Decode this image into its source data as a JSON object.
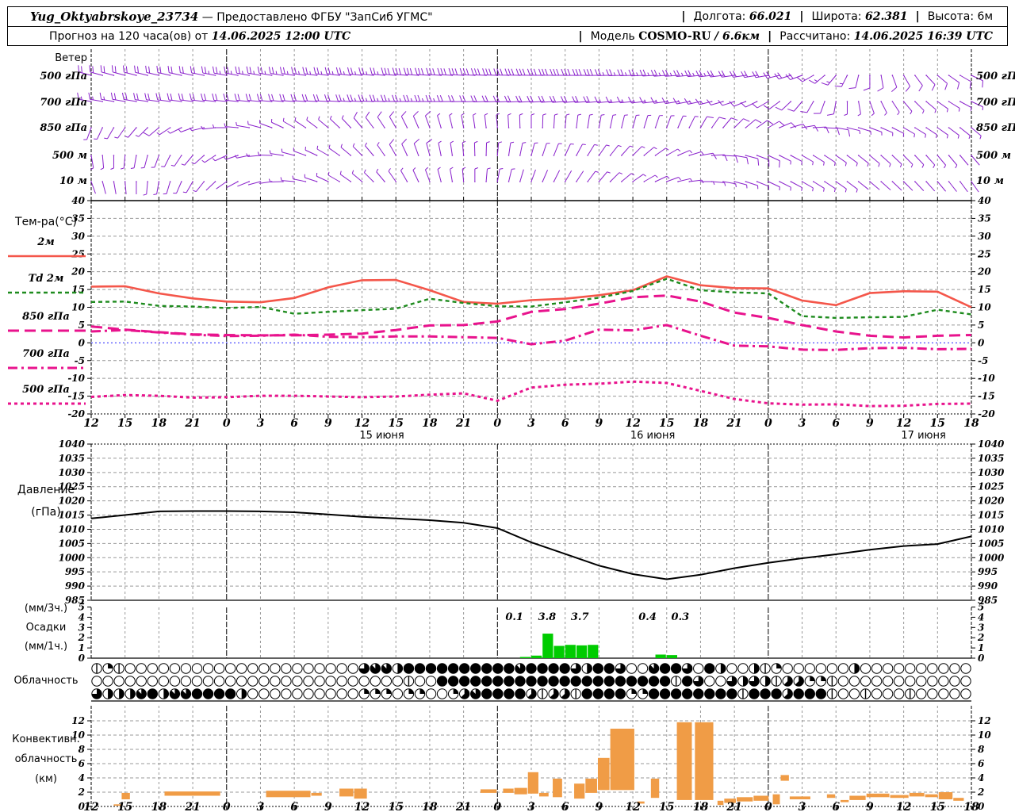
{
  "header": {
    "station": "Yug_Oktyabrskoye_23734",
    "provided": "— Предоставлено ФГБУ \"ЗапСиб УГМС\"",
    "sep": "|",
    "lon_label": "Долгота:",
    "lon": "66.021",
    "lat_label": "Широта:",
    "lat": "62.381",
    "alt_label": "Высота:",
    "alt": "6м",
    "forecast_label": "Прогноз на 120 часа(ов) от",
    "forecast_time": "14.06.2025 12:00 UTC",
    "model_label": "Модель",
    "model_name": "COSMO-RU",
    "model_res": "/ 6.6км",
    "calc_label": "Рассчитано:",
    "calc_time": "14.06.2025 16:39 UTC"
  },
  "labels": {
    "wind": "Ветер",
    "wind_levels": [
      "500 гПа",
      "700 гПа",
      "850 гПа",
      "500 м",
      "10 м"
    ],
    "temp_title": "Тем-ра(°C)",
    "legend": [
      "2м",
      "Td 2м",
      "850 гПа",
      "700 гПа",
      "500 гПа"
    ],
    "pressure1": "Давление",
    "pressure2": "(гПа)",
    "precip1": "(мм/3ч.)",
    "precip2": "Осадки",
    "precip3": "(мм/1ч.)",
    "cloud": "Облачность",
    "conv1": "Конвективн.",
    "conv2": "облачность",
    "conv3": "(км)"
  },
  "axis": {
    "hours": [
      "12",
      "15",
      "18",
      "21",
      "0",
      "3",
      "6",
      "9",
      "12",
      "15",
      "18",
      "21",
      "0",
      "3",
      "6",
      "9",
      "12",
      "15",
      "18",
      "21",
      "0",
      "3",
      "6",
      "9",
      "12",
      "15",
      "18"
    ],
    "hour_step": 3,
    "t_max": 78,
    "days": [
      {
        "t": 24,
        "label": "15 июня"
      },
      {
        "t": 48,
        "label": "16 июня"
      },
      {
        "t": 72,
        "label": "17 июня"
      }
    ],
    "temp_ticks": [
      40,
      35,
      30,
      25,
      20,
      15,
      10,
      5,
      0,
      -5,
      -10,
      -15,
      -20
    ],
    "pressure_ticks": [
      1040,
      1035,
      1030,
      1025,
      1020,
      1015,
      1010,
      1005,
      1000,
      995,
      990,
      985
    ],
    "precip_ticks": [
      5,
      4,
      3,
      2,
      1,
      0
    ],
    "conv_ticks": [
      12,
      10,
      8,
      6,
      4,
      2,
      0
    ]
  },
  "colors": {
    "barb": "#8a22cc",
    "temp_2m": "#f4564a",
    "dewpoint": "#1e8b1e",
    "magenta": "#e8138d",
    "pressure": "#000000",
    "precip_bar": "#00cc00",
    "conv_bar": "#f09c46",
    "grid": "#999999",
    "zero_line": "#2222ff"
  },
  "chart_data": [
    {
      "id": "wind",
      "type": "wind-barbs",
      "step_h": 3,
      "levels": [
        {
          "name": "500 гПа",
          "dir": [
            285,
            285,
            283,
            282,
            280,
            280,
            278,
            277,
            276,
            275,
            274,
            273,
            272,
            271,
            270,
            269,
            268,
            266,
            264,
            262,
            260,
            250,
            220,
            180,
            150,
            130,
            115
          ],
          "spd": [
            11,
            11,
            12,
            12,
            13,
            13,
            13,
            14,
            14,
            15,
            15,
            16,
            16,
            16,
            15,
            15,
            14,
            13,
            13,
            12,
            11,
            10,
            8,
            7,
            6,
            6,
            5
          ]
        },
        {
          "name": "700 гПа",
          "dir": [
            280,
            280,
            278,
            277,
            276,
            275,
            274,
            273,
            272,
            271,
            270,
            269,
            268,
            267,
            266,
            265,
            264,
            262,
            258,
            252,
            240,
            220,
            190,
            160,
            140,
            125,
            115
          ],
          "spd": [
            9,
            10,
            10,
            11,
            11,
            12,
            12,
            12,
            13,
            13,
            13,
            12,
            12,
            11,
            10,
            10,
            9,
            8,
            8,
            7,
            6,
            5,
            5,
            4,
            4,
            4,
            3
          ]
        },
        {
          "name": "850 гПа",
          "dir": [
            200,
            215,
            230,
            250,
            270,
            285,
            300,
            310,
            320,
            330,
            340,
            350,
            355,
            360,
            365,
            370,
            375,
            380,
            390,
            405,
            420,
            440,
            460,
            470,
            480,
            485,
            490
          ],
          "spd": [
            4,
            4,
            5,
            4,
            3,
            3,
            4,
            4,
            5,
            5,
            5,
            4,
            4,
            4,
            3,
            3,
            4,
            4,
            5,
            5,
            6,
            5,
            5,
            4,
            4,
            3,
            3
          ]
        },
        {
          "name": "500 м",
          "dir": [
            170,
            185,
            200,
            220,
            245,
            265,
            285,
            300,
            315,
            330,
            345,
            355,
            365,
            375,
            385,
            395,
            405,
            420,
            440,
            460,
            475,
            480,
            485,
            490,
            495,
            500,
            500
          ],
          "spd": [
            3,
            3,
            4,
            4,
            3,
            3,
            4,
            4,
            4,
            5,
            5,
            4,
            4,
            3,
            3,
            3,
            4,
            4,
            5,
            5,
            5,
            4,
            4,
            3,
            3,
            3,
            2
          ]
        },
        {
          "name": "10 м",
          "dir": [
            160,
            175,
            190,
            210,
            235,
            255,
            275,
            295,
            310,
            325,
            340,
            355,
            370,
            380,
            390,
            400,
            415,
            430,
            450,
            465,
            475,
            480,
            485,
            490,
            495,
            500,
            505
          ],
          "spd": [
            2,
            2,
            3,
            3,
            2,
            2,
            3,
            3,
            3,
            4,
            4,
            3,
            3,
            2,
            2,
            3,
            3,
            3,
            4,
            4,
            4,
            3,
            3,
            2,
            2,
            2,
            2
          ]
        }
      ]
    },
    {
      "id": "temp",
      "type": "line",
      "step_h": 3,
      "ylim": [
        -20,
        40
      ],
      "series": [
        {
          "name": "2м",
          "color": "#f4564a",
          "dash": "",
          "width": 2.6,
          "values": [
            15.8,
            15.9,
            13.9,
            12.5,
            11.6,
            11.4,
            12.6,
            15.6,
            17.6,
            17.7,
            14.8,
            11.5,
            11.0,
            12.0,
            12.4,
            13.4,
            14.8,
            18.7,
            16.2,
            15.4,
            15.3,
            11.9,
            10.6,
            14.0,
            14.5,
            14.4,
            10.0
          ]
        },
        {
          "name": "Td 2м",
          "color": "#1e8b1e",
          "dash": "5,4",
          "width": 2.4,
          "values": [
            11.5,
            11.6,
            10.4,
            10.2,
            9.8,
            10.1,
            8.2,
            8.7,
            9.2,
            9.6,
            12.4,
            11.2,
            10.3,
            10.2,
            11.4,
            12.7,
            14.6,
            18.0,
            14.8,
            14.2,
            13.9,
            7.5,
            7.0,
            7.2,
            7.3,
            9.3,
            8.0
          ]
        },
        {
          "name": "850 гПа",
          "color": "#e8138d",
          "dash": "14,7",
          "width": 3,
          "values": [
            4.6,
            3.7,
            3.0,
            2.4,
            2.2,
            2.1,
            2.1,
            2.3,
            2.6,
            3.6,
            4.9,
            5.0,
            6.0,
            8.7,
            9.5,
            11.0,
            12.8,
            13.3,
            11.6,
            8.5,
            7.0,
            5.0,
            3.2,
            2.0,
            1.5,
            2.0,
            2.2
          ]
        },
        {
          "name": "700 гПа",
          "color": "#e8138d",
          "dash": "12,5,3,5",
          "width": 3,
          "values": [
            3.2,
            3.6,
            2.9,
            2.3,
            1.9,
            2.0,
            2.3,
            1.7,
            1.6,
            1.8,
            1.8,
            1.6,
            1.4,
            -0.4,
            0.6,
            3.7,
            3.5,
            5.0,
            2.0,
            -0.8,
            -1.0,
            -1.9,
            -2.0,
            -1.5,
            -1.4,
            -1.8,
            -1.7
          ]
        },
        {
          "name": "500 гПа",
          "color": "#e8138d",
          "dash": "4,4",
          "width": 3,
          "values": [
            -15.2,
            -14.7,
            -14.9,
            -15.4,
            -15.3,
            -14.9,
            -14.9,
            -15.1,
            -15.3,
            -15.1,
            -14.6,
            -14.2,
            -16.3,
            -12.6,
            -11.8,
            -11.5,
            -10.9,
            -11.3,
            -13.5,
            -15.8,
            -17.0,
            -17.4,
            -17.3,
            -17.8,
            -17.7,
            -17.2,
            -17.1
          ]
        }
      ]
    },
    {
      "id": "pressure",
      "type": "line",
      "step_h": 3,
      "ylim": [
        985,
        1040
      ],
      "values": [
        1013.8,
        1015.0,
        1016.3,
        1016.4,
        1016.4,
        1016.3,
        1016.0,
        1015.2,
        1014.4,
        1013.8,
        1013.2,
        1012.3,
        1010.4,
        1005.4,
        1001.3,
        997.2,
        994.2,
        992.4,
        994.0,
        996.3,
        998.2,
        999.8,
        1001.2,
        1002.8,
        1004.1,
        1004.8,
        1007.5
      ]
    },
    {
      "id": "precip",
      "type": "bar",
      "ylim": [
        0,
        5
      ],
      "bars": [
        [
          38,
          0.12
        ],
        [
          39,
          0.25
        ],
        [
          40,
          2.4
        ],
        [
          41,
          1.2
        ],
        [
          42,
          1.3
        ],
        [
          43,
          1.25
        ],
        [
          44,
          1.3
        ],
        [
          50,
          0.35
        ],
        [
          51,
          0.3
        ]
      ],
      "labels3h": [
        {
          "t": 37.5,
          "text": "0.1"
        },
        {
          "t": 40.4,
          "text": "3.8"
        },
        {
          "t": 43.3,
          "text": "3.7"
        },
        {
          "t": 49.3,
          "text": "0.4"
        },
        {
          "t": 52.2,
          "text": "0.3"
        }
      ]
    },
    {
      "id": "cloud",
      "type": "cloud-cover",
      "rows": [
        [
          1,
          2,
          1,
          0,
          0,
          0,
          0,
          0,
          0,
          0,
          0,
          0,
          0,
          0,
          0,
          0,
          0,
          0,
          0,
          0,
          0,
          0,
          0,
          0,
          6,
          7,
          7,
          4,
          8,
          8,
          8,
          8,
          8,
          8,
          8,
          8,
          8,
          8,
          7,
          8,
          8,
          8,
          8,
          6,
          4,
          8,
          8,
          6,
          0,
          0,
          7,
          8,
          8,
          6,
          0,
          8,
          4,
          0,
          0,
          4,
          1,
          2,
          0,
          0,
          0,
          0,
          0,
          0,
          4,
          0,
          0,
          0,
          0,
          0,
          0,
          0,
          0,
          0,
          0
        ],
        [
          0,
          0,
          0,
          0,
          0,
          0,
          0,
          0,
          0,
          0,
          0,
          0,
          0,
          0,
          0,
          0,
          0,
          0,
          0,
          0,
          0,
          0,
          0,
          0,
          0,
          0,
          0,
          0,
          1,
          0,
          0,
          8,
          8,
          8,
          8,
          8,
          8,
          8,
          8,
          8,
          8,
          8,
          8,
          8,
          8,
          8,
          8,
          8,
          8,
          8,
          8,
          8,
          1,
          8,
          6,
          0,
          0,
          6,
          4,
          6,
          4,
          1,
          5,
          5,
          2,
          2,
          1,
          0,
          0,
          0,
          0,
          0,
          0,
          0,
          0,
          0,
          0,
          0,
          0
        ],
        [
          6,
          4,
          4,
          4,
          7,
          8,
          4,
          7,
          7,
          8,
          8,
          8,
          8,
          4,
          0,
          0,
          0,
          0,
          0,
          0,
          0,
          0,
          0,
          0,
          2,
          2,
          2,
          0,
          2,
          2,
          0,
          0,
          2,
          5,
          7,
          8,
          8,
          8,
          8,
          5,
          1,
          5,
          5,
          1,
          8,
          8,
          8,
          8,
          2,
          2,
          8,
          8,
          8,
          8,
          8,
          8,
          8,
          8,
          1,
          8,
          8,
          8,
          5,
          8,
          8,
          8,
          1,
          0,
          0,
          1,
          0,
          0,
          0,
          1,
          0,
          0,
          0,
          0,
          0
        ]
      ]
    },
    {
      "id": "conv",
      "type": "bar-range",
      "ylim": [
        0,
        12
      ],
      "segments": [
        [
          2.0,
          2.7,
          0.1,
          0.3
        ],
        [
          2.7,
          3.5,
          1.0,
          1.9
        ],
        [
          6.5,
          11.5,
          1.5,
          2.1
        ],
        [
          15.5,
          19.5,
          1.3,
          2.2
        ],
        [
          19.5,
          20.5,
          1.5,
          1.9
        ],
        [
          22.0,
          23.3,
          1.4,
          2.5
        ],
        [
          23.3,
          24.5,
          1.1,
          2.5
        ],
        [
          34.5,
          36.0,
          1.9,
          2.4
        ],
        [
          36.5,
          37.5,
          1.9,
          2.5
        ],
        [
          37.5,
          38.7,
          1.7,
          2.6
        ],
        [
          38.7,
          39.7,
          1.8,
          4.8
        ],
        [
          39.7,
          40.6,
          1.4,
          1.9
        ],
        [
          40.9,
          41.8,
          1.3,
          3.9
        ],
        [
          42.8,
          43.8,
          1.1,
          3.2
        ],
        [
          43.8,
          44.9,
          1.9,
          3.9
        ],
        [
          44.9,
          46.0,
          2.3,
          6.8
        ],
        [
          46.0,
          48.2,
          2.3,
          10.9
        ],
        [
          48.4,
          49.1,
          0.4,
          0.7
        ],
        [
          49.6,
          50.4,
          1.2,
          3.9
        ],
        [
          51.9,
          53.3,
          0.9,
          11.8
        ],
        [
          53.5,
          55.2,
          0.9,
          11.8
        ],
        [
          55.5,
          56.1,
          0.2,
          0.8
        ],
        [
          56.1,
          57.2,
          0.5,
          1.1
        ],
        [
          57.2,
          58.7,
          0.7,
          1.3
        ],
        [
          58.7,
          60.1,
          0.8,
          1.5
        ],
        [
          60.4,
          61.1,
          0.3,
          1.7
        ],
        [
          61.1,
          61.9,
          3.6,
          4.4
        ],
        [
          61.9,
          63.8,
          1.0,
          1.4
        ],
        [
          65.2,
          66.0,
          1.2,
          1.7
        ],
        [
          66.4,
          67.2,
          0.6,
          0.9
        ],
        [
          67.2,
          68.7,
          0.9,
          1.5
        ],
        [
          68.7,
          70.8,
          1.3,
          1.8
        ],
        [
          70.8,
          72.5,
          1.2,
          1.6
        ],
        [
          72.5,
          73.9,
          1.4,
          1.9
        ],
        [
          73.9,
          75.1,
          1.3,
          1.7
        ],
        [
          75.1,
          76.4,
          1.0,
          2.0
        ],
        [
          76.4,
          77.4,
          0.8,
          1.2
        ]
      ]
    }
  ]
}
